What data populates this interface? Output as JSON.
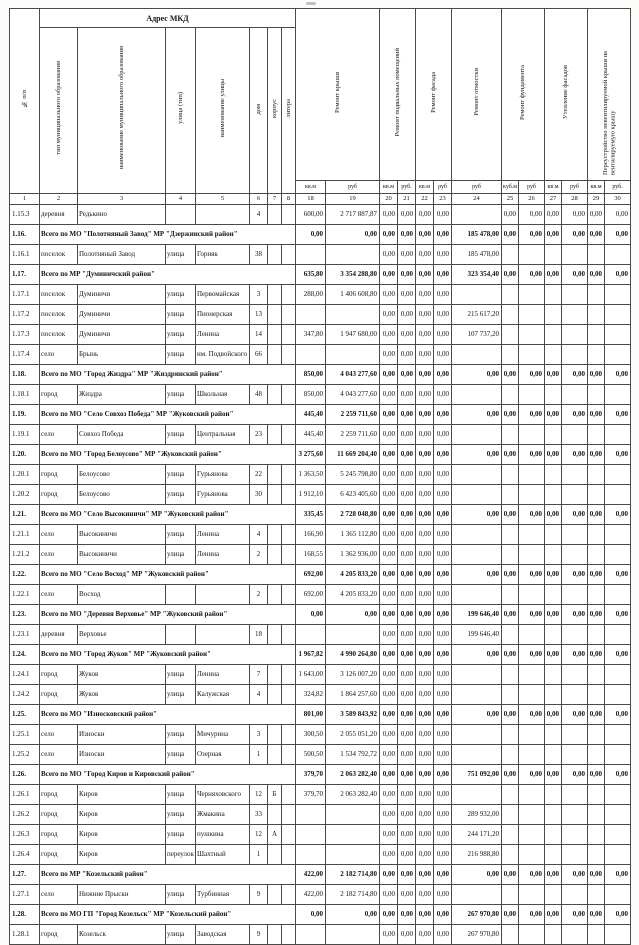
{
  "table": {
    "header": {
      "col_no": "№ п/п",
      "address_group": "Адрес МКД",
      "sub": {
        "type": "тип муниципального образования",
        "name": "наименование муниципального образования",
        "st_type": "улица (тип)",
        "st_name": "наименование улицы",
        "house": "дом",
        "korpus": "корпус",
        "litera": "литера"
      },
      "groups": {
        "roof": "Ремонт крыши",
        "basement": "Ремонт подвальных помещений",
        "facade": "Ремонт фасада",
        "blind_area": "Ремонт отмостки",
        "foundation": "Ремонт фундамента",
        "insulation": "Утепление фасадов",
        "roof_conversion": "Переустройство невентилируемой крыши на вентилируемую крышу"
      },
      "units": {
        "sqm": "кв.м",
        "rub": "руб",
        "rub_dot": "руб.",
        "cbm": "куб.м"
      },
      "col_numbers": [
        "1",
        "2",
        "3",
        "4",
        "5",
        "6",
        "7",
        "8",
        "18",
        "19",
        "20",
        "21",
        "22",
        "23",
        "24",
        "25",
        "26",
        "27",
        "28",
        "29",
        "30"
      ]
    },
    "rows": [
      {
        "n": "1.15.3",
        "total": false,
        "type": "деревня",
        "name": "Редькино",
        "sttype": "",
        "street": "",
        "house": "4",
        "korp": "",
        "lit": "",
        "v18": "600,00",
        "v19": "2 717 887,87",
        "v20": "0,00",
        "v21": "0,00",
        "v22": "0,00",
        "v23": "0,00",
        "v25": "0,00",
        "v26": "0,00",
        "v27": "0,00",
        "v28": "0,00",
        "v29": "0,00",
        "v30": "0,00"
      },
      {
        "n": "1.16.",
        "total": true,
        "name": "Всего по МО \"Полотняный Завод\" МР \"Дзержинский район\"",
        "v18": "0,00",
        "v19": "0,00",
        "v20": "0,00",
        "v21": "0,00",
        "v22": "0,00",
        "v23": "0,00",
        "v24": "185 478,00",
        "v25": "0,00",
        "v26": "0,00",
        "v27": "0,00",
        "v28": "0,00",
        "v29": "0,00",
        "v30": "0,00"
      },
      {
        "n": "1.16.1",
        "total": false,
        "type": "поселок",
        "name": "Полотняный Завод",
        "sttype": "улица",
        "street": "Горняк",
        "house": "38",
        "korp": "",
        "lit": "",
        "v20": "0,00",
        "v21": "0,00",
        "v22": "0,00",
        "v23": "0,00",
        "v24": "185 478,00"
      },
      {
        "n": "1.17.",
        "total": true,
        "name": "Всего по МР \"Думиничский район\"",
        "v18": "635,80",
        "v19": "3 354 288,80",
        "v20": "0,00",
        "v21": "0,00",
        "v22": "0,00",
        "v23": "0,00",
        "v24": "323 354,40",
        "v25": "0,00",
        "v26": "0,00",
        "v27": "0,00",
        "v28": "0,00",
        "v29": "0,00",
        "v30": "0,00"
      },
      {
        "n": "1.17.1",
        "total": false,
        "type": "поселок",
        "name": "Думиничи",
        "sttype": "улица",
        "street": "Первомайская",
        "house": "3",
        "korp": "",
        "lit": "",
        "v18": "288,00",
        "v19": "1 406 608,80",
        "v20": "0,00",
        "v21": "0,00",
        "v22": "0,00",
        "v23": "0,00"
      },
      {
        "n": "1.17.2",
        "total": false,
        "type": "поселок",
        "name": "Думиничи",
        "sttype": "улица",
        "street": "Пионерская",
        "house": "13",
        "korp": "",
        "lit": "",
        "v20": "0,00",
        "v21": "0,00",
        "v22": "0,00",
        "v23": "0,00",
        "v24": "215 617,20"
      },
      {
        "n": "1.17.3",
        "total": false,
        "type": "поселок",
        "name": "Думиничи",
        "sttype": "улица",
        "street": "Ленина",
        "house": "14",
        "korp": "",
        "lit": "",
        "v18": "347,80",
        "v19": "1 947 680,00",
        "v20": "0,00",
        "v21": "0,00",
        "v22": "0,00",
        "v23": "0,00",
        "v24": "107 737,20"
      },
      {
        "n": "1.17.4",
        "total": false,
        "type": "село",
        "name": "Брынь",
        "sttype": "улица",
        "street": "им. Подвойского",
        "house": "66",
        "korp": "",
        "lit": "",
        "v20": "0,00",
        "v21": "0,00",
        "v22": "0,00",
        "v23": "0,00"
      },
      {
        "n": "1.18.",
        "total": true,
        "name": "Всего по МО \"Город Жиздра\" МР \"Жиздринский район\"",
        "v18": "850,00",
        "v19": "4 043 277,60",
        "v20": "0,00",
        "v21": "0,00",
        "v22": "0,00",
        "v23": "0,00",
        "v24": "0,00",
        "v25": "0,00",
        "v26": "0,00",
        "v27": "0,00",
        "v28": "0,00",
        "v29": "0,00",
        "v30": "0,00"
      },
      {
        "n": "1.18.1",
        "total": false,
        "type": "город",
        "name": "Жиздра",
        "sttype": "улица",
        "street": "Школьная",
        "house": "48",
        "korp": "",
        "lit": "",
        "v18": "850,00",
        "v19": "4 043 277,60",
        "v20": "0,00",
        "v21": "0,00",
        "v22": "0,00",
        "v23": "0,00"
      },
      {
        "n": "1.19.",
        "total": true,
        "name": "Всего по МО \"Село Совхоз Победа\" МР \"Жуковский район\"",
        "v18": "445,40",
        "v19": "2 259 711,60",
        "v20": "0,00",
        "v21": "0,00",
        "v22": "0,00",
        "v23": "0,00",
        "v24": "0,00",
        "v25": "0,00",
        "v26": "0,00",
        "v27": "0,00",
        "v28": "0,00",
        "v29": "0,00",
        "v30": "0,00"
      },
      {
        "n": "1.19.1",
        "total": false,
        "type": "село",
        "name": "Совхоз Победа",
        "sttype": "улица",
        "street": "Центральная",
        "house": "23",
        "korp": "",
        "lit": "",
        "v18": "445,40",
        "v19": "2 259 711,60",
        "v20": "0,00",
        "v21": "0,00",
        "v22": "0,00",
        "v23": "0,00"
      },
      {
        "n": "1.20.",
        "total": true,
        "name": "Всего по МО \"Город Белоусово\" МР \"Жуковский район\"",
        "v18": "3 275,60",
        "v19": "11 669 204,40",
        "v20": "0,00",
        "v21": "0,00",
        "v22": "0,00",
        "v23": "0,00",
        "v24": "0,00",
        "v25": "0,00",
        "v26": "0,00",
        "v27": "0,00",
        "v28": "0,00",
        "v29": "0,00",
        "v30": "0,00"
      },
      {
        "n": "1.20.1",
        "total": false,
        "type": "город",
        "name": "Белоусово",
        "sttype": "улица",
        "street": "Гурьянова",
        "house": "22",
        "korp": "",
        "lit": "",
        "v18": "1 363,50",
        "v19": "5 245 798,80",
        "v20": "0,00",
        "v21": "0,00",
        "v22": "0,00",
        "v23": "0,00"
      },
      {
        "n": "1.20.2",
        "total": false,
        "type": "город",
        "name": "Белоусово",
        "sttype": "улица",
        "street": "Гурьянова",
        "house": "30",
        "korp": "",
        "lit": "",
        "v18": "1 912,10",
        "v19": "6 423 405,60",
        "v20": "0,00",
        "v21": "0,00",
        "v22": "0,00",
        "v23": "0,00"
      },
      {
        "n": "1.21.",
        "total": true,
        "name": "Всего по МО \"Село Высокиничи\" МР \"Жуковский район\"",
        "v18": "335,45",
        "v19": "2 728 048,80",
        "v20": "0,00",
        "v21": "0,00",
        "v22": "0,00",
        "v23": "0,00",
        "v24": "0,00",
        "v25": "0,00",
        "v26": "0,00",
        "v27": "0,00",
        "v28": "0,00",
        "v29": "0,00",
        "v30": "0,00"
      },
      {
        "n": "1.21.1",
        "total": false,
        "type": "село",
        "name": "Высокиничи",
        "sttype": "улица",
        "street": "Ленина",
        "house": "4",
        "korp": "",
        "lit": "",
        "v18": "166,90",
        "v19": "1 365 112,80",
        "v20": "0,00",
        "v21": "0,00",
        "v22": "0,00",
        "v23": "0,00"
      },
      {
        "n": "1.21.2",
        "total": false,
        "type": "село",
        "name": "Высокиничи",
        "sttype": "улица",
        "street": "Ленина",
        "house": "2",
        "korp": "",
        "lit": "",
        "v18": "168,55",
        "v19": "1 362 936,00",
        "v20": "0,00",
        "v21": "0,00",
        "v22": "0,00",
        "v23": "0,00"
      },
      {
        "n": "1.22.",
        "total": true,
        "name": "Всего по МО \"Село Восход\" МР \"Жуковский район\"",
        "v18": "692,00",
        "v19": "4 205 833,20",
        "v20": "0,00",
        "v21": "0,00",
        "v22": "0,00",
        "v23": "0,00",
        "v24": "0,00",
        "v25": "0,00",
        "v26": "0,00",
        "v27": "0,00",
        "v28": "0,00",
        "v29": "0,00",
        "v30": "0,00"
      },
      {
        "n": "1.22.1",
        "total": false,
        "type": "село",
        "name": "Восход",
        "sttype": "",
        "street": "",
        "house": "2",
        "korp": "",
        "lit": "",
        "v18": "692,00",
        "v19": "4 205 833,20",
        "v20": "0,00",
        "v21": "0,00",
        "v22": "0,00",
        "v23": "0,00"
      },
      {
        "n": "1.23.",
        "total": true,
        "name": "Всего по МО \"Деревня Верховье\" МР \"Жуковский район\"",
        "v18": "0,00",
        "v19": "0,00",
        "v20": "0,00",
        "v21": "0,00",
        "v22": "0,00",
        "v23": "0,00",
        "v24": "199 646,40",
        "v25": "0,00",
        "v26": "0,00",
        "v27": "0,00",
        "v28": "0,00",
        "v29": "0,00",
        "v30": "0,00"
      },
      {
        "n": "1.23.1",
        "total": false,
        "type": "деревня",
        "name": "Верховье",
        "sttype": "",
        "street": "",
        "house": "18",
        "korp": "",
        "lit": "",
        "v20": "0,00",
        "v21": "0,00",
        "v22": "0,00",
        "v23": "0,00",
        "v24": "199 646,40"
      },
      {
        "n": "1.24.",
        "total": true,
        "name": "Всего по МО \"Город Жуков\" МР \"Жуковский район\"",
        "v18": "1 967,82",
        "v19": "4 990 264,80",
        "v20": "0,00",
        "v21": "0,00",
        "v22": "0,00",
        "v23": "0,00",
        "v24": "0,00",
        "v25": "0,00",
        "v26": "0,00",
        "v27": "0,00",
        "v28": "0,00",
        "v29": "0,00",
        "v30": "0,00"
      },
      {
        "n": "1.24.1",
        "total": false,
        "type": "город",
        "name": "Жуков",
        "sttype": "улица",
        "street": "Ленина",
        "house": "7",
        "korp": "",
        "lit": "",
        "v18": "1 643,00",
        "v19": "3 126 007,20",
        "v20": "0,00",
        "v21": "0,00",
        "v22": "0,00",
        "v23": "0,00"
      },
      {
        "n": "1.24.2",
        "total": false,
        "type": "город",
        "name": "Жуков",
        "sttype": "улица",
        "street": "Калужская",
        "house": "4",
        "korp": "",
        "lit": "",
        "v18": "324,82",
        "v19": "1 864 257,60",
        "v20": "0,00",
        "v21": "0,00",
        "v22": "0,00",
        "v23": "0,00"
      },
      {
        "n": "1.25.",
        "total": true,
        "name": "Всего по МО \"Износковский район\"",
        "v18": "801,00",
        "v19": "3 589 843,92",
        "v20": "0,00",
        "v21": "0,00",
        "v22": "0,00",
        "v23": "0,00",
        "v24": "0,00",
        "v25": "0,00",
        "v26": "0,00",
        "v27": "0,00",
        "v28": "0,00",
        "v29": "0,00",
        "v30": "0,00"
      },
      {
        "n": "1.25.1",
        "total": false,
        "type": "село",
        "name": "Износки",
        "sttype": "улица",
        "street": "Мичурина",
        "house": "3",
        "korp": "",
        "lit": "",
        "v18": "300,50",
        "v19": "2 055 051,20",
        "v20": "0,00",
        "v21": "0,00",
        "v22": "0,00",
        "v23": "0,00"
      },
      {
        "n": "1.25.2",
        "total": false,
        "type": "село",
        "name": "Износки",
        "sttype": "улица",
        "street": "Озерная",
        "house": "1",
        "korp": "",
        "lit": "",
        "v18": "500,50",
        "v19": "1 534 792,72",
        "v20": "0,00",
        "v21": "0,00",
        "v22": "0,00",
        "v23": "0,00"
      },
      {
        "n": "1.26.",
        "total": true,
        "name": "Всего по МО \"Город Киров и Кировский район\"",
        "v18": "379,70",
        "v19": "2 063 282,40",
        "v20": "0,00",
        "v21": "0,00",
        "v22": "0,00",
        "v23": "0,00",
        "v24": "751 092,00",
        "v25": "0,00",
        "v26": "0,00",
        "v27": "0,00",
        "v28": "0,00",
        "v29": "0,00",
        "v30": "0,00"
      },
      {
        "n": "1.26.1",
        "total": false,
        "type": "город",
        "name": "Киров",
        "sttype": "улица",
        "street": "Черняховского",
        "house": "12",
        "korp": "Б",
        "lit": "",
        "v18": "379,70",
        "v19": "2 063 282,40",
        "v20": "0,00",
        "v21": "0,00",
        "v22": "0,00",
        "v23": "0,00"
      },
      {
        "n": "1.26.2",
        "total": false,
        "type": "город",
        "name": "Киров",
        "sttype": "улица",
        "street": "Жмакина",
        "house": "33",
        "korp": "",
        "lit": "",
        "v20": "0,00",
        "v21": "0,00",
        "v22": "0,00",
        "v23": "0,00",
        "v24": "289 932,00"
      },
      {
        "n": "1.26.3",
        "total": false,
        "type": "город",
        "name": "Киров",
        "sttype": "улица",
        "street": "пушкина",
        "house": "12",
        "korp": "А",
        "lit": "",
        "v20": "0,00",
        "v21": "0,00",
        "v22": "0,00",
        "v23": "0,00",
        "v24": "244 171,20"
      },
      {
        "n": "1.26.4",
        "total": false,
        "type": "город",
        "name": "Киров",
        "sttype": "переулок",
        "street": "Шахтный",
        "house": "1",
        "korp": "",
        "lit": "",
        "v20": "0,00",
        "v21": "0,00",
        "v22": "0,00",
        "v23": "0,00",
        "v24": "216 988,80"
      },
      {
        "n": "1.27.",
        "total": true,
        "name": "Всего по МР \"Козельский район\"",
        "v18": "422,00",
        "v19": "2 182 714,80",
        "v20": "0,00",
        "v21": "0,00",
        "v22": "0,00",
        "v23": "0,00",
        "v24": "0,00",
        "v25": "0,00",
        "v26": "0,00",
        "v27": "0,00",
        "v28": "0,00",
        "v29": "0,00",
        "v30": "0,00"
      },
      {
        "n": "1.27.1",
        "total": false,
        "type": "село",
        "name": "Нижние Прыски",
        "sttype": "улица",
        "street": "Турбинная",
        "house": "9",
        "korp": "",
        "lit": "",
        "v18": "422,00",
        "v19": "2 182 714,80",
        "v20": "0,00",
        "v21": "0,00",
        "v22": "0,00",
        "v23": "0,00"
      },
      {
        "n": "1.28.",
        "total": true,
        "name": "Всего по МО ГП \"Город Козельск\" МР \"Козельский район\"",
        "v18": "0,00",
        "v19": "0,00",
        "v20": "0,00",
        "v21": "0,00",
        "v22": "0,00",
        "v23": "0,00",
        "v24": "267 970,80",
        "v25": "0,00",
        "v26": "0,00",
        "v27": "0,00",
        "v28": "0,00",
        "v29": "0,00",
        "v30": "0,00"
      },
      {
        "n": "1.28.1",
        "total": false,
        "type": "город",
        "name": "Козельск",
        "sttype": "улица",
        "street": "Заводская",
        "house": "9",
        "korp": "",
        "lit": "",
        "v20": "0,00",
        "v21": "0,00",
        "v22": "0,00",
        "v23": "0,00",
        "v24": "267 970,80"
      }
    ]
  }
}
